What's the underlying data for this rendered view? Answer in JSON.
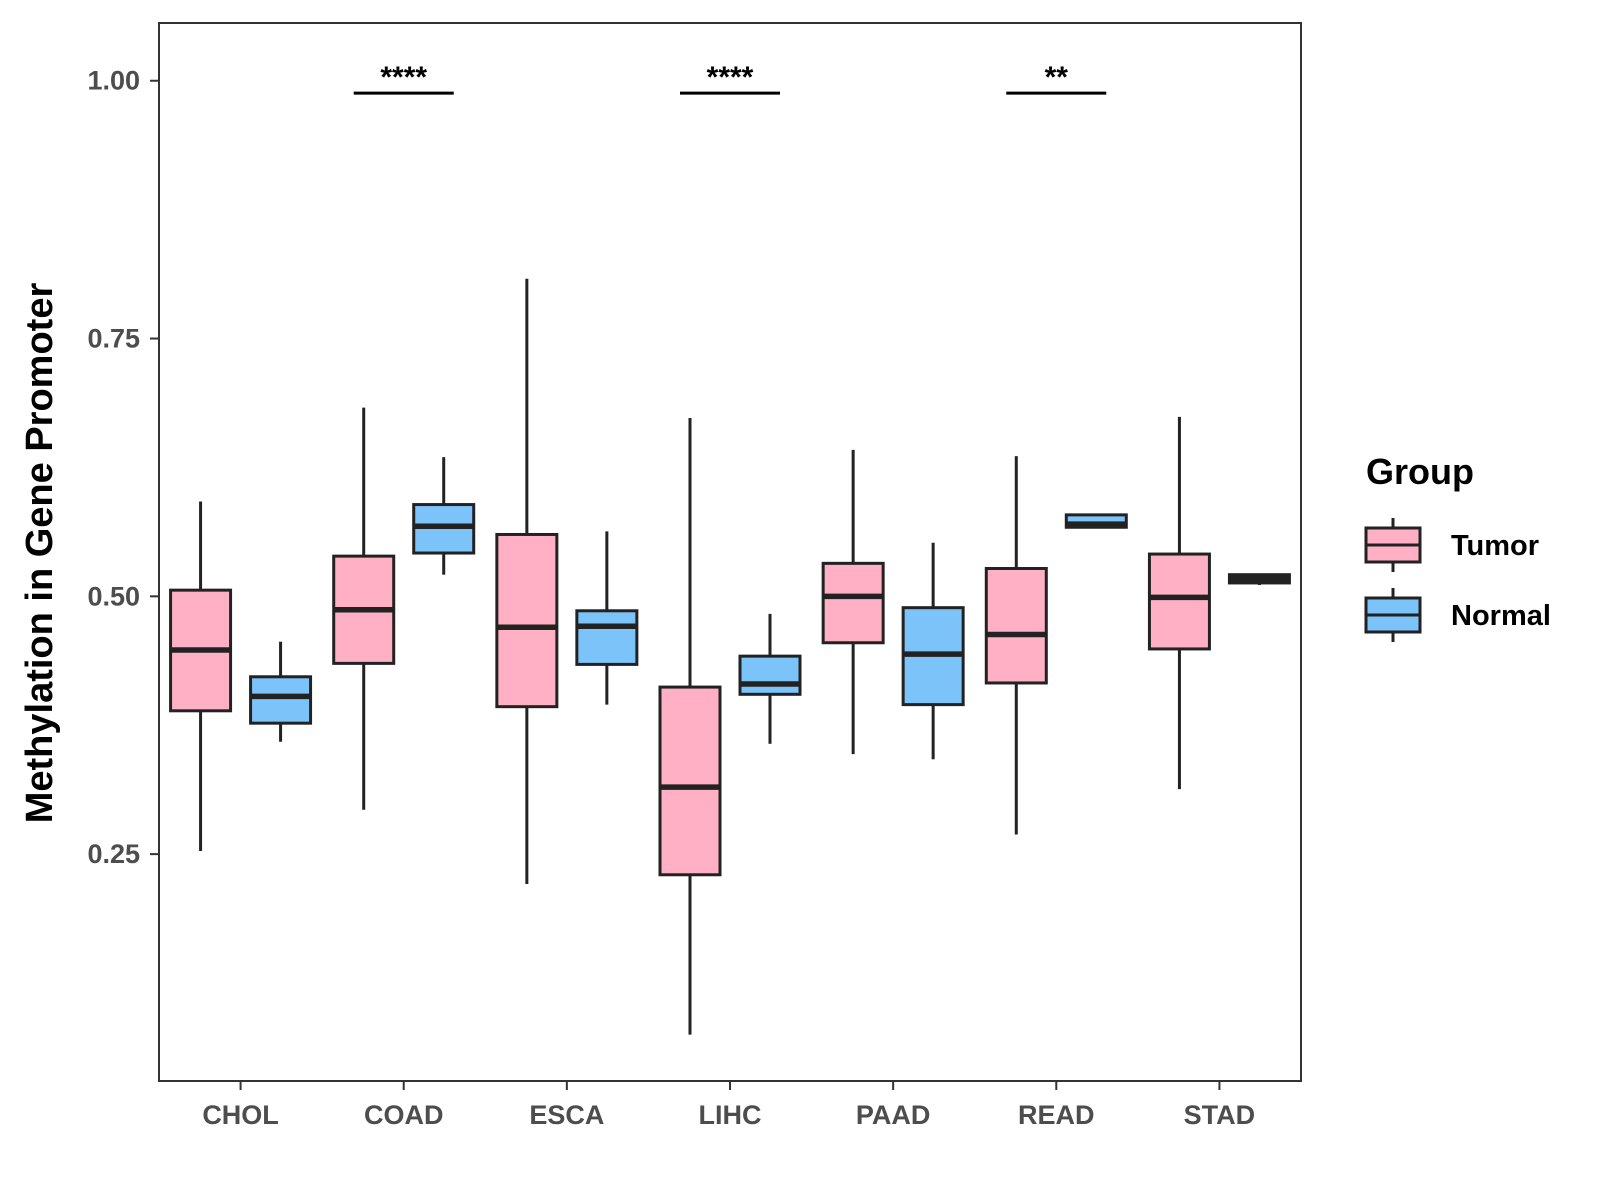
{
  "chart_data": {
    "type": "boxplot",
    "title": "",
    "xlabel": "",
    "ylabel": "Methylation in Gene Promoter",
    "ylim": [
      0.03,
      1.056
    ],
    "yticks": [
      0.25,
      0.5,
      0.75,
      1.0
    ],
    "ytick_labels": [
      "0.25",
      "0.50",
      "0.75",
      "1.00"
    ],
    "categories": [
      "CHOL",
      "COAD",
      "ESCA",
      "LIHC",
      "PAAD",
      "READ",
      "STAD"
    ],
    "legend": {
      "title": "Group",
      "position": "right",
      "entries": [
        {
          "name": "Tumor",
          "color": "#ffb0c4"
        },
        {
          "name": "Normal",
          "color": "#7cc3f9"
        }
      ]
    },
    "series": [
      {
        "name": "Tumor",
        "color": "#ffb0c4",
        "boxes": [
          {
            "category": "CHOL",
            "min": 0.253,
            "q1": 0.389,
            "median": 0.448,
            "q3": 0.506,
            "max": 0.592
          },
          {
            "category": "COAD",
            "min": 0.293,
            "q1": 0.435,
            "median": 0.487,
            "q3": 0.539,
            "max": 0.683
          },
          {
            "category": "ESCA",
            "min": 0.221,
            "q1": 0.393,
            "median": 0.47,
            "q3": 0.56,
            "max": 0.808
          },
          {
            "category": "LIHC",
            "min": 0.075,
            "q1": 0.23,
            "median": 0.315,
            "q3": 0.412,
            "max": 0.673
          },
          {
            "category": "PAAD",
            "min": 0.347,
            "q1": 0.455,
            "median": 0.5,
            "q3": 0.532,
            "max": 0.642
          },
          {
            "category": "READ",
            "min": 0.269,
            "q1": 0.416,
            "median": 0.463,
            "q3": 0.527,
            "max": 0.636
          },
          {
            "category": "STAD",
            "min": 0.313,
            "q1": 0.449,
            "median": 0.499,
            "q3": 0.541,
            "max": 0.674
          }
        ]
      },
      {
        "name": "Normal",
        "color": "#7cc3f9",
        "boxes": [
          {
            "category": "CHOL",
            "min": 0.359,
            "q1": 0.377,
            "median": 0.403,
            "q3": 0.422,
            "max": 0.456
          },
          {
            "category": "COAD",
            "min": 0.521,
            "q1": 0.542,
            "median": 0.568,
            "q3": 0.589,
            "max": 0.635
          },
          {
            "category": "ESCA",
            "min": 0.395,
            "q1": 0.434,
            "median": 0.471,
            "q3": 0.486,
            "max": 0.563
          },
          {
            "category": "LIHC",
            "min": 0.357,
            "q1": 0.405,
            "median": 0.415,
            "q3": 0.442,
            "max": 0.483
          },
          {
            "category": "PAAD",
            "min": 0.342,
            "q1": 0.395,
            "median": 0.444,
            "q3": 0.489,
            "max": 0.552
          },
          {
            "category": "READ",
            "min": 0.566,
            "q1": 0.567,
            "median": 0.57,
            "q3": 0.579,
            "max": 0.579
          },
          {
            "category": "STAD",
            "min": 0.511,
            "q1": 0.513,
            "median": 0.517,
            "q3": 0.521,
            "max": 0.522
          }
        ]
      }
    ],
    "annotations": [
      {
        "category": "COAD",
        "label": "****",
        "y": 0.988
      },
      {
        "category": "LIHC",
        "label": "****",
        "y": 0.988
      },
      {
        "category": "READ",
        "label": "**",
        "y": 0.988
      }
    ]
  }
}
